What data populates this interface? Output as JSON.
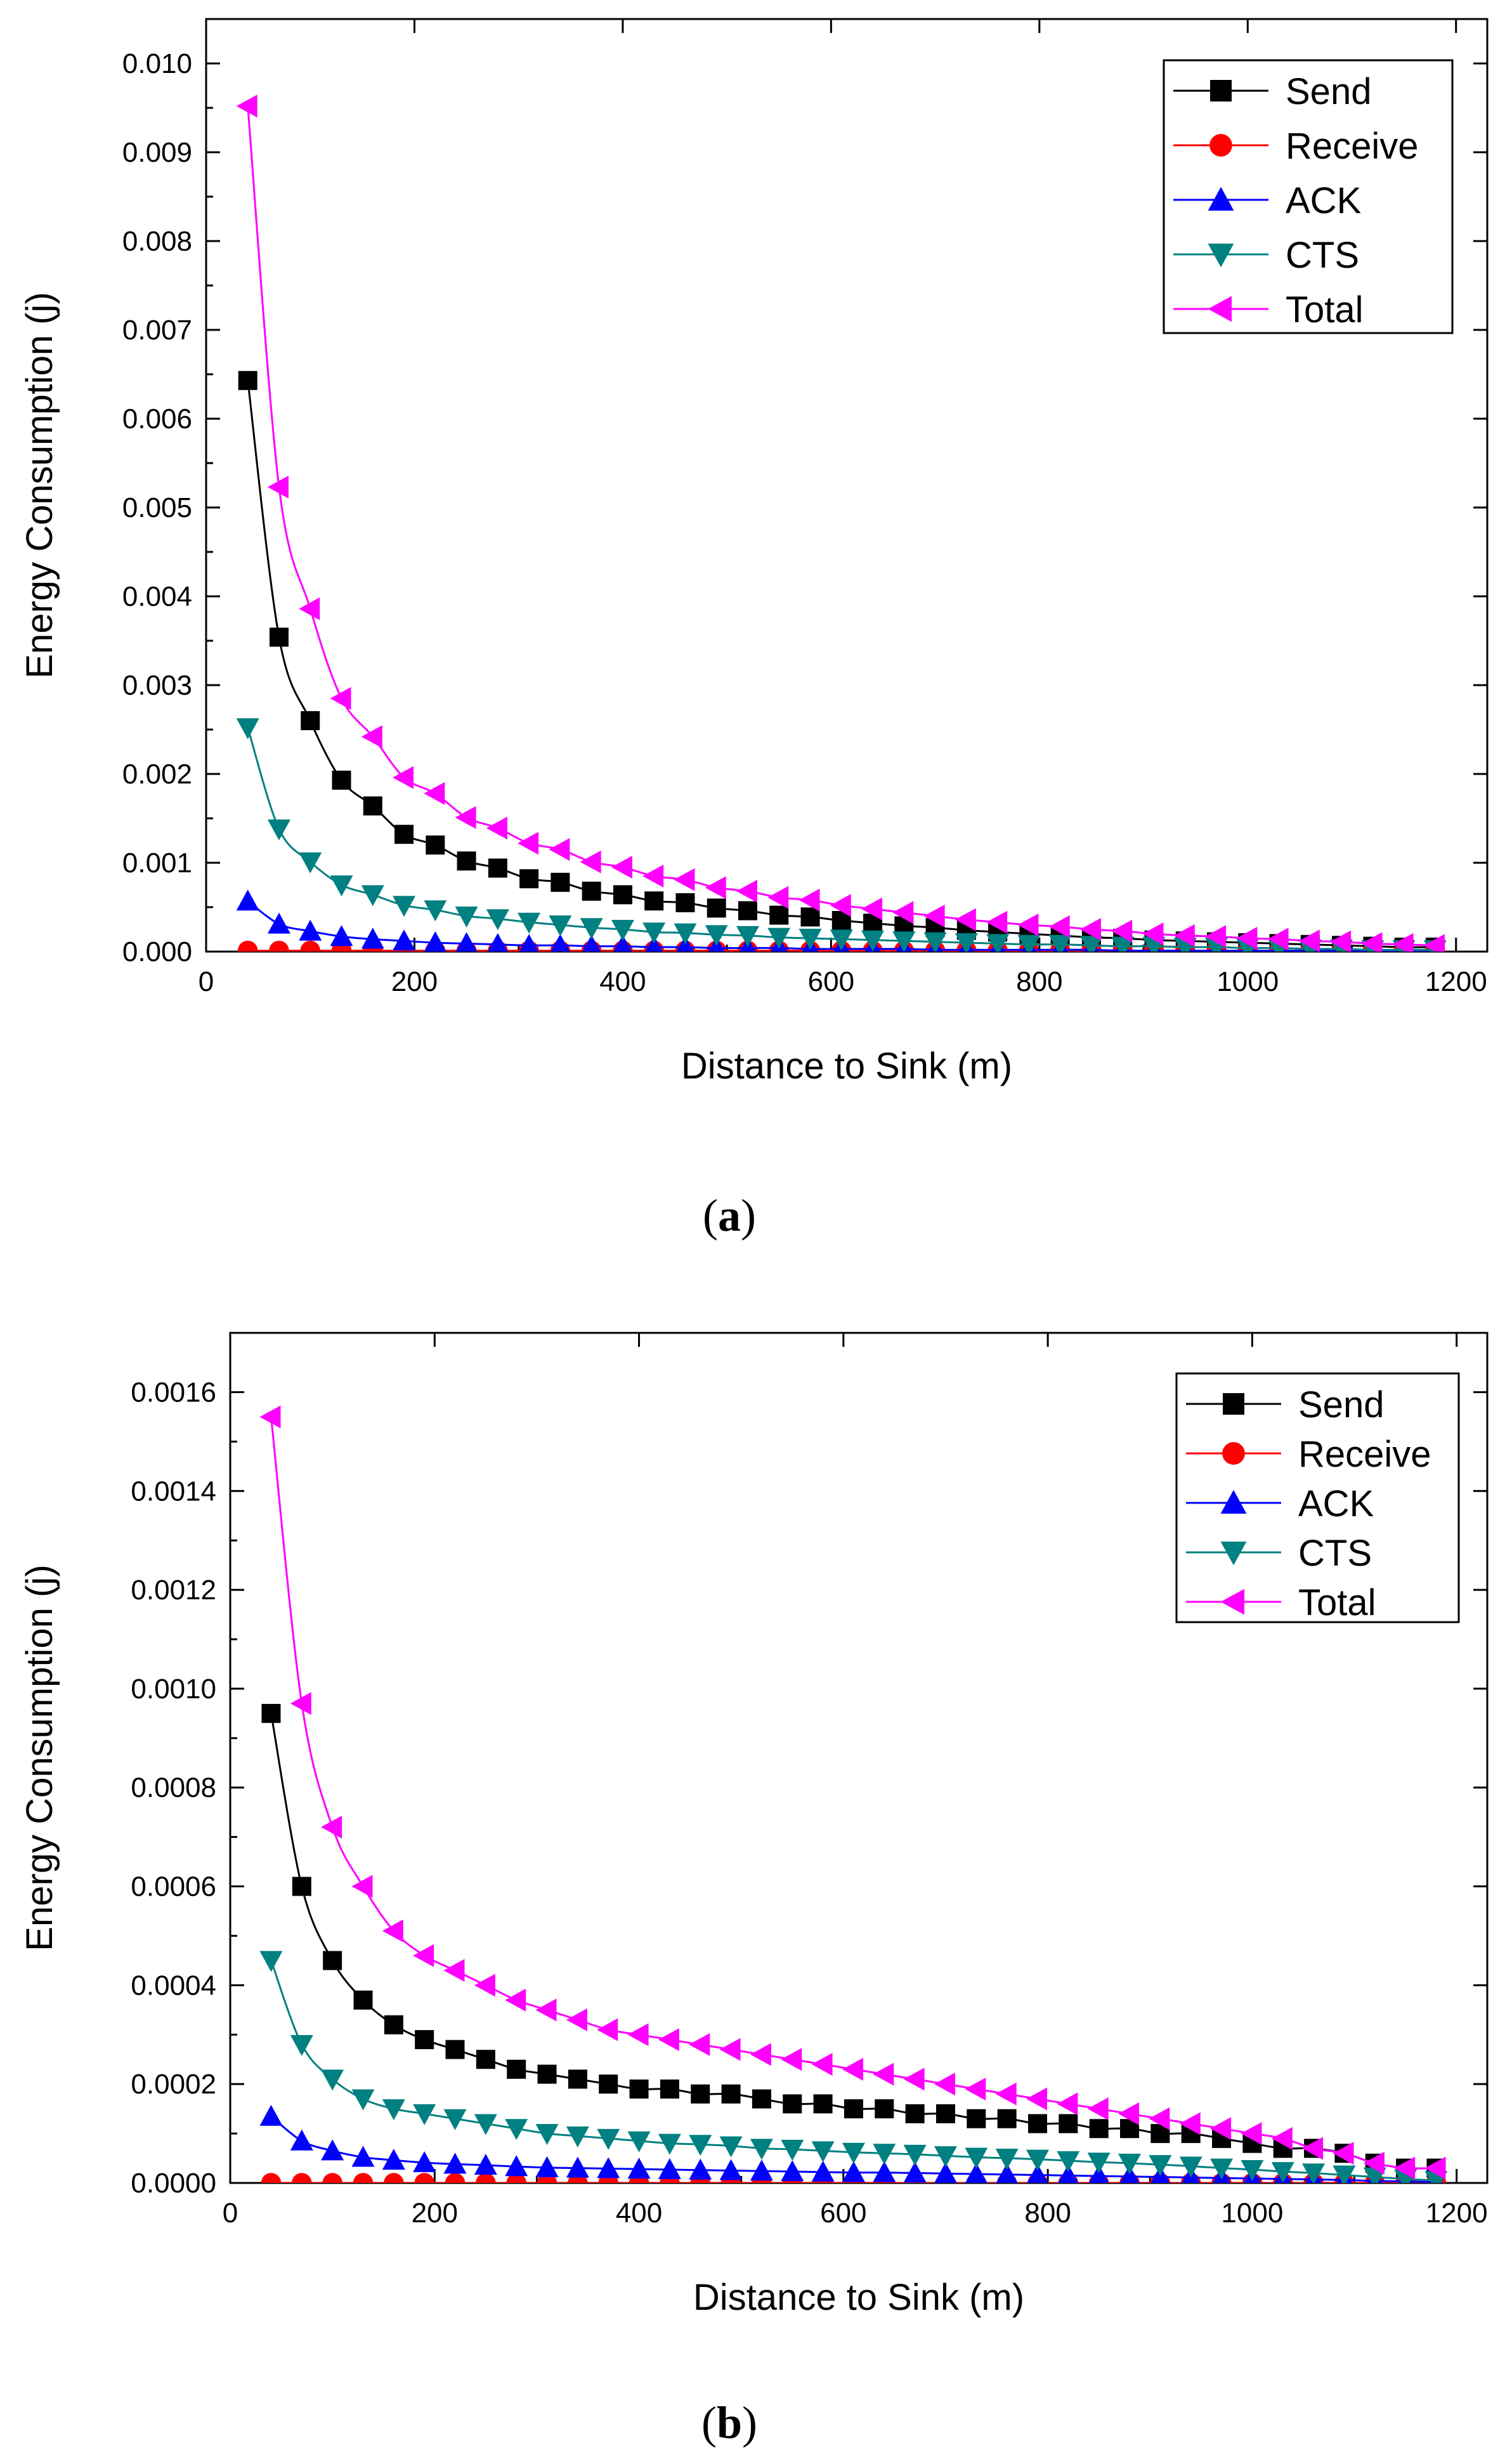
{
  "colors": {
    "Send": "#000000",
    "Receive": "#ff0000",
    "ACK": "#0000ff",
    "CTS": "#008080",
    "Total": "#ff00ff"
  },
  "panel_labels": [
    "a",
    "b"
  ],
  "chart_data": [
    {
      "type": "line",
      "panel": "a",
      "xlabel": "Distance to Sink (m)",
      "ylabel": "Energy Consumption (j)",
      "xlim": [
        0,
        1230
      ],
      "ylim": [
        0,
        0.0105
      ],
      "xticks": [
        0,
        200,
        400,
        600,
        800,
        1000,
        1200
      ],
      "xtick_labels": [
        "0",
        "200",
        "400",
        "600",
        "800",
        "1000",
        "1200"
      ],
      "yticks": [
        0.0,
        0.001,
        0.002,
        0.003,
        0.004,
        0.005,
        0.006,
        0.007,
        0.008,
        0.009,
        0.01
      ],
      "ytick_labels": [
        "0.000",
        "0.001",
        "0.002",
        "0.003",
        "0.004",
        "0.005",
        "0.006",
        "0.007",
        "0.008",
        "0.009",
        "0.010"
      ],
      "legend": {
        "position": "top-right",
        "entries": [
          "Send",
          "Receive",
          "ACK",
          "CTS",
          "Total"
        ]
      },
      "x": [
        40,
        70,
        100,
        130,
        160,
        190,
        220,
        250,
        280,
        310,
        340,
        370,
        400,
        430,
        460,
        490,
        520,
        550,
        580,
        610,
        640,
        670,
        700,
        730,
        760,
        790,
        820,
        850,
        880,
        910,
        940,
        970,
        1000,
        1030,
        1060,
        1090,
        1120,
        1150,
        1180
      ],
      "series": [
        {
          "name": "Send",
          "marker": "square",
          "values": [
            0.00643,
            0.00354,
            0.0026,
            0.00193,
            0.00164,
            0.00132,
            0.0012,
            0.00102,
            0.00094,
            0.00082,
            0.00078,
            0.00068,
            0.00064,
            0.00057,
            0.00055,
            0.00049,
            0.00046,
            0.00041,
            0.00039,
            0.00035,
            0.00032,
            0.00029,
            0.00027,
            0.00024,
            0.00022,
            0.0002,
            0.00018,
            0.00016,
            0.00015,
            0.00013,
            0.00012,
            0.00011,
            0.0001,
            9e-05,
            8e-05,
            7e-05,
            6e-05,
            5e-05,
            5e-05
          ]
        },
        {
          "name": "Receive",
          "marker": "circle",
          "values": [
            1e-05,
            1e-05,
            1e-05,
            1e-05,
            1e-05,
            1e-05,
            1e-05,
            1e-05,
            1e-05,
            1e-05,
            1e-05,
            1e-05,
            1e-05,
            1e-05,
            1e-05,
            1e-05,
            1e-05,
            1e-05,
            1e-05,
            1e-05,
            1e-05,
            1e-05,
            1e-05,
            1e-05,
            1e-05,
            1e-05,
            1e-05,
            1e-05,
            1e-05,
            1e-05,
            1e-05,
            1e-05,
            1e-05,
            1e-05,
            1e-05,
            1e-05,
            1e-05,
            1e-05,
            1e-05
          ]
        },
        {
          "name": "ACK",
          "marker": "triangle-up",
          "values": [
            0.00057,
            0.00031,
            0.00023,
            0.00017,
            0.00014,
            0.00012,
            0.0001,
            9e-05,
            8e-05,
            7e-05,
            7e-05,
            6e-05,
            6e-05,
            5e-05,
            5e-05,
            4e-05,
            4e-05,
            4e-05,
            3e-05,
            3e-05,
            3e-05,
            3e-05,
            2e-05,
            2e-05,
            2e-05,
            2e-05,
            2e-05,
            2e-05,
            1e-05,
            1e-05,
            1e-05,
            1e-05,
            1e-05,
            1e-05,
            1e-05,
            1e-05,
            1e-05,
            1e-05,
            1e-05
          ]
        },
        {
          "name": "CTS",
          "marker": "triangle-down",
          "values": [
            0.00252,
            0.00138,
            0.00101,
            0.00075,
            0.00064,
            0.00052,
            0.00047,
            0.0004,
            0.00037,
            0.00033,
            0.0003,
            0.00027,
            0.00025,
            0.00022,
            0.00021,
            0.00019,
            0.00018,
            0.00016,
            0.00015,
            0.00014,
            0.00013,
            0.00012,
            0.00011,
            0.0001,
            9e-05,
            8e-05,
            8e-05,
            7e-05,
            6e-05,
            6e-05,
            5e-05,
            5e-05,
            4e-05,
            4e-05,
            3e-05,
            3e-05,
            2e-05,
            2e-05,
            2e-05
          ]
        },
        {
          "name": "Total",
          "marker": "triangle-left",
          "values": [
            0.00952,
            0.00523,
            0.00386,
            0.00285,
            0.00242,
            0.00196,
            0.00178,
            0.00151,
            0.00139,
            0.00122,
            0.00115,
            0.00101,
            0.00095,
            0.00085,
            0.00081,
            0.00072,
            0.00068,
            0.00061,
            0.00058,
            0.00052,
            0.00048,
            0.00044,
            0.0004,
            0.00036,
            0.00033,
            0.0003,
            0.00028,
            0.00025,
            0.00023,
            0.0002,
            0.00018,
            0.00017,
            0.00015,
            0.00014,
            0.00012,
            0.00011,
            9e-05,
            8e-05,
            7e-05
          ]
        }
      ]
    },
    {
      "type": "line",
      "panel": "b",
      "xlabel": "Distance to Sink (m)",
      "ylabel": "Energy Consumption (j)",
      "xlim": [
        0,
        1230
      ],
      "ylim": [
        0,
        0.00172
      ],
      "xticks": [
        0,
        200,
        400,
        600,
        800,
        1000,
        1200
      ],
      "xtick_labels": [
        "0",
        "200",
        "400",
        "600",
        "800",
        "1000",
        "1200"
      ],
      "yticks": [
        0.0,
        0.0002,
        0.0004,
        0.0006,
        0.0008,
        0.001,
        0.0012,
        0.0014,
        0.0016
      ],
      "ytick_labels": [
        "0.0000",
        "0.0002",
        "0.0004",
        "0.0006",
        "0.0008",
        "0.0010",
        "0.0012",
        "0.0014",
        "0.0016"
      ],
      "legend": {
        "position": "top-right",
        "entries": [
          "Send",
          "Receive",
          "ACK",
          "CTS",
          "Total"
        ]
      },
      "x": [
        40,
        70,
        100,
        130,
        160,
        190,
        220,
        250,
        280,
        310,
        340,
        370,
        400,
        430,
        460,
        490,
        520,
        550,
        580,
        610,
        640,
        670,
        700,
        730,
        760,
        790,
        820,
        850,
        880,
        910,
        940,
        970,
        1000,
        1030,
        1060,
        1090,
        1120,
        1150,
        1180
      ],
      "series": [
        {
          "name": "Send",
          "marker": "square",
          "values": [
            0.00095,
            0.0006,
            0.00045,
            0.00037,
            0.00032,
            0.00029,
            0.00027,
            0.00025,
            0.00023,
            0.00022,
            0.00021,
            0.0002,
            0.00019,
            0.00019,
            0.00018,
            0.00018,
            0.00017,
            0.00016,
            0.00016,
            0.00015,
            0.00015,
            0.00014,
            0.00014,
            0.00013,
            0.00013,
            0.00012,
            0.00012,
            0.00011,
            0.00011,
            0.0001,
            0.0001,
            9e-05,
            8e-05,
            7e-05,
            7e-05,
            6e-05,
            4e-05,
            3e-05,
            3e-05
          ]
        },
        {
          "name": "Receive",
          "marker": "circle",
          "values": [
            0.0,
            0.0,
            0.0,
            0.0,
            0.0,
            0.0,
            0.0,
            0.0,
            0.0,
            0.0,
            0.0,
            0.0,
            0.0,
            0.0,
            0.0,
            0.0,
            0.0,
            0.0,
            0.0,
            0.0,
            0.0,
            0.0,
            0.0,
            0.0,
            0.0,
            0.0,
            0.0,
            0.0,
            0.0,
            0.0,
            0.0,
            0.0,
            0.0,
            0.0,
            0.0,
            0.0,
            0.0,
            0.0,
            0.0
          ]
        },
        {
          "name": "ACK",
          "marker": "triangle-up",
          "values": [
            0.000135,
            8.5e-05,
            6.5e-05,
            5.2e-05,
            4.6e-05,
            4.1e-05,
            3.8e-05,
            3.6e-05,
            3.3e-05,
            3.1e-05,
            3e-05,
            2.9e-05,
            2.8e-05,
            2.7e-05,
            2.6e-05,
            2.5e-05,
            2.4e-05,
            2.3e-05,
            2.2e-05,
            2.1e-05,
            2.1e-05,
            2e-05,
            1.9e-05,
            1.8e-05,
            1.7e-05,
            1.6e-05,
            1.5e-05,
            1.4e-05,
            1.3e-05,
            1.2e-05,
            1.1e-05,
            1e-05,
            9e-06,
            8e-06,
            7e-06,
            6e-06,
            4e-06,
            3e-06,
            2e-06
          ]
        },
        {
          "name": "CTS",
          "marker": "triangle-down",
          "values": [
            0.00045,
            0.00028,
            0.00021,
            0.00017,
            0.00015,
            0.00014,
            0.00013,
            0.00012,
            0.00011,
            0.0001,
            9.5e-05,
            9e-05,
            8.5e-05,
            8e-05,
            7.8e-05,
            7.5e-05,
            7e-05,
            6.8e-05,
            6.5e-05,
            6.2e-05,
            6e-05,
            5.8e-05,
            5.5e-05,
            5.2e-05,
            5e-05,
            4.8e-05,
            4.5e-05,
            4.2e-05,
            4e-05,
            3.7e-05,
            3.4e-05,
            3e-05,
            2.7e-05,
            2.3e-05,
            2e-05,
            1.6e-05,
            1.2e-05,
            8e-06,
            5e-06
          ]
        },
        {
          "name": "Total",
          "marker": "triangle-left",
          "values": [
            0.00155,
            0.00097,
            0.00072,
            0.0006,
            0.00051,
            0.00046,
            0.00043,
            0.0004,
            0.00037,
            0.00035,
            0.00033,
            0.00031,
            0.0003,
            0.00029,
            0.00028,
            0.00027,
            0.00026,
            0.00025,
            0.00024,
            0.00023,
            0.00022,
            0.00021,
            0.0002,
            0.00019,
            0.00018,
            0.00017,
            0.00016,
            0.00015,
            0.00014,
            0.00013,
            0.00012,
            0.00011,
            0.0001,
            9e-05,
            7e-05,
            6e-05,
            4e-05,
            3e-05,
            3e-05
          ]
        }
      ]
    }
  ]
}
